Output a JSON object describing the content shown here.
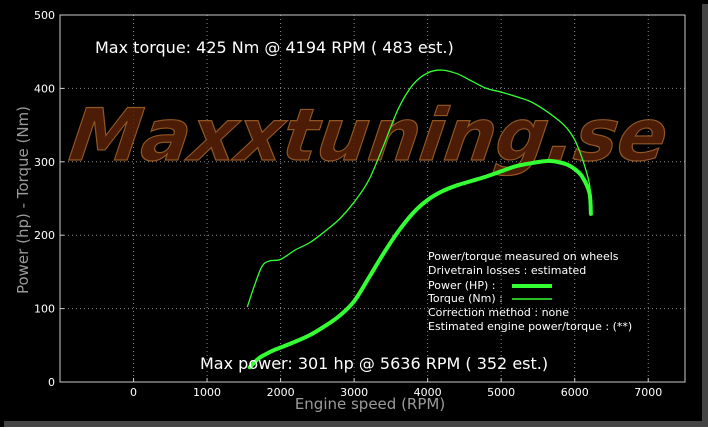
{
  "chart_data": {
    "type": "line",
    "xlabel": "Engine speed (RPM)",
    "ylabel": "Power (hp) - Torque (Nm)",
    "xlim": [
      -1000,
      7500
    ],
    "ylim": [
      0,
      500
    ],
    "x_ticks": [
      "0",
      "1000",
      "2000",
      "3000",
      "4000",
      "5000",
      "6000",
      "7000"
    ],
    "x_tick_values": [
      0,
      1000,
      2000,
      3000,
      4000,
      5000,
      6000,
      7000
    ],
    "y_ticks": [
      "0",
      "100",
      "200",
      "300",
      "400",
      "500"
    ],
    "y_tick_values": [
      0,
      100,
      200,
      300,
      400,
      500
    ],
    "grid": true,
    "watermark": "Maxxtuning.se",
    "annotations": {
      "max_torque": "Max torque:  425 Nm @  4194 RPM ( 483 est.)",
      "max_power": "Max power:   301 hp @  5636 RPM ( 352 est.)"
    },
    "legend": {
      "placement": "bottom-right",
      "lines": [
        "Power/torque measured on wheels",
        "Drivetrain losses : estimated",
        "Power (HP)   :",
        "Torque (Nm) :",
        "Correction method : none",
        "Estimated engine power/torque : (**)"
      ]
    },
    "series": [
      {
        "name": "Power (HP)",
        "color": "#33ff33",
        "x": [
          1580,
          1700,
          1800,
          1900,
          2000,
          2200,
          2400,
          2600,
          2800,
          3000,
          3200,
          3400,
          3600,
          3800,
          4000,
          4200,
          4400,
          4600,
          4800,
          5000,
          5200,
          5400,
          5600,
          5700,
          5800,
          5900,
          6000,
          6100,
          6200,
          6220
        ],
        "values": [
          20,
          32,
          38,
          43,
          47,
          55,
          64,
          76,
          90,
          110,
          142,
          175,
          205,
          230,
          248,
          260,
          268,
          274,
          280,
          287,
          294,
          298,
          301,
          301,
          299,
          296,
          290,
          280,
          258,
          229
        ]
      },
      {
        "name": "Torque (Nm)",
        "color": "#33ff33",
        "x": [
          1550,
          1650,
          1750,
          1850,
          2000,
          2200,
          2400,
          2600,
          2800,
          3000,
          3200,
          3400,
          3600,
          3800,
          4000,
          4194,
          4400,
          4600,
          4800,
          5000,
          5200,
          5400,
          5600,
          5800,
          5900,
          6000,
          6100,
          6200,
          6220
        ],
        "values": [
          103,
          133,
          158,
          165,
          167,
          180,
          190,
          205,
          222,
          245,
          275,
          322,
          372,
          405,
          421,
          425,
          420,
          410,
          400,
          395,
          389,
          382,
          370,
          355,
          345,
          330,
          305,
          270,
          238
        ]
      }
    ]
  }
}
